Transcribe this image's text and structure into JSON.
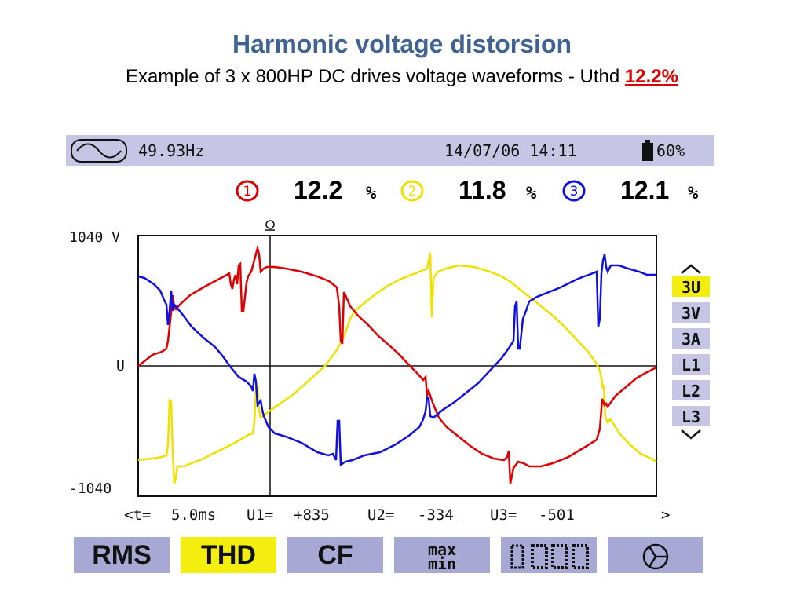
{
  "title": "Harmonic voltage distorsion",
  "subtitle": {
    "text": "Example of 3 x 800HP DC drives voltage waveforms - Uthd ",
    "highlight": "12.2%"
  },
  "status": {
    "frequency": "49.93Hz",
    "datetime": "14/07/06 14:11",
    "battery": "60%",
    "wave_icon": "sine-wave-icon",
    "battery_icon": "battery-icon"
  },
  "thd": [
    {
      "phase": "1",
      "value": "12.2",
      "unit": "%",
      "color": "#E00000"
    },
    {
      "phase": "2",
      "value": "11.8",
      "unit": "%",
      "color": "#F0E000"
    },
    {
      "phase": "3",
      "value": "12.1",
      "unit": "%",
      "color": "#1010E0"
    }
  ],
  "plot": {
    "y_top_label": "1040 V",
    "y_mid_label": "U",
    "y_bottom_label": "-1040",
    "cursor_icon": "cursor-marker-icon",
    "readout": {
      "t_label": "<t=",
      "t_value": "5.0ms",
      "u1_label": "U1=",
      "u1_value": "+835",
      "u2_label": "U2=",
      "u2_value": "-334",
      "u3_label": "U3=",
      "u3_value": "-501",
      "next": ">"
    }
  },
  "side_menu": {
    "up_icon": "chevron-up-icon",
    "down_icon": "chevron-down-icon",
    "items": [
      "3U",
      "3V",
      "3A",
      "L1",
      "L2",
      "L3"
    ],
    "selected": "3U"
  },
  "buttons": [
    {
      "label": "RMS",
      "active": false
    },
    {
      "label": "THD",
      "active": true
    },
    {
      "label": "CF",
      "active": false
    },
    {
      "label_top": "max",
      "label_bottom": "min",
      "active": false
    },
    {
      "icon": "table-grid-icon",
      "active": false
    },
    {
      "icon": "phasor-diagram-icon",
      "active": false
    }
  ],
  "colors": {
    "phase1": "#E00000",
    "phase2": "#F0E000",
    "phase3": "#1010E0",
    "status_bg": "#C6C6E4",
    "button_bg": "#A8A8D4",
    "active_bg": "#F4EE10",
    "title": "#3F6494"
  }
}
